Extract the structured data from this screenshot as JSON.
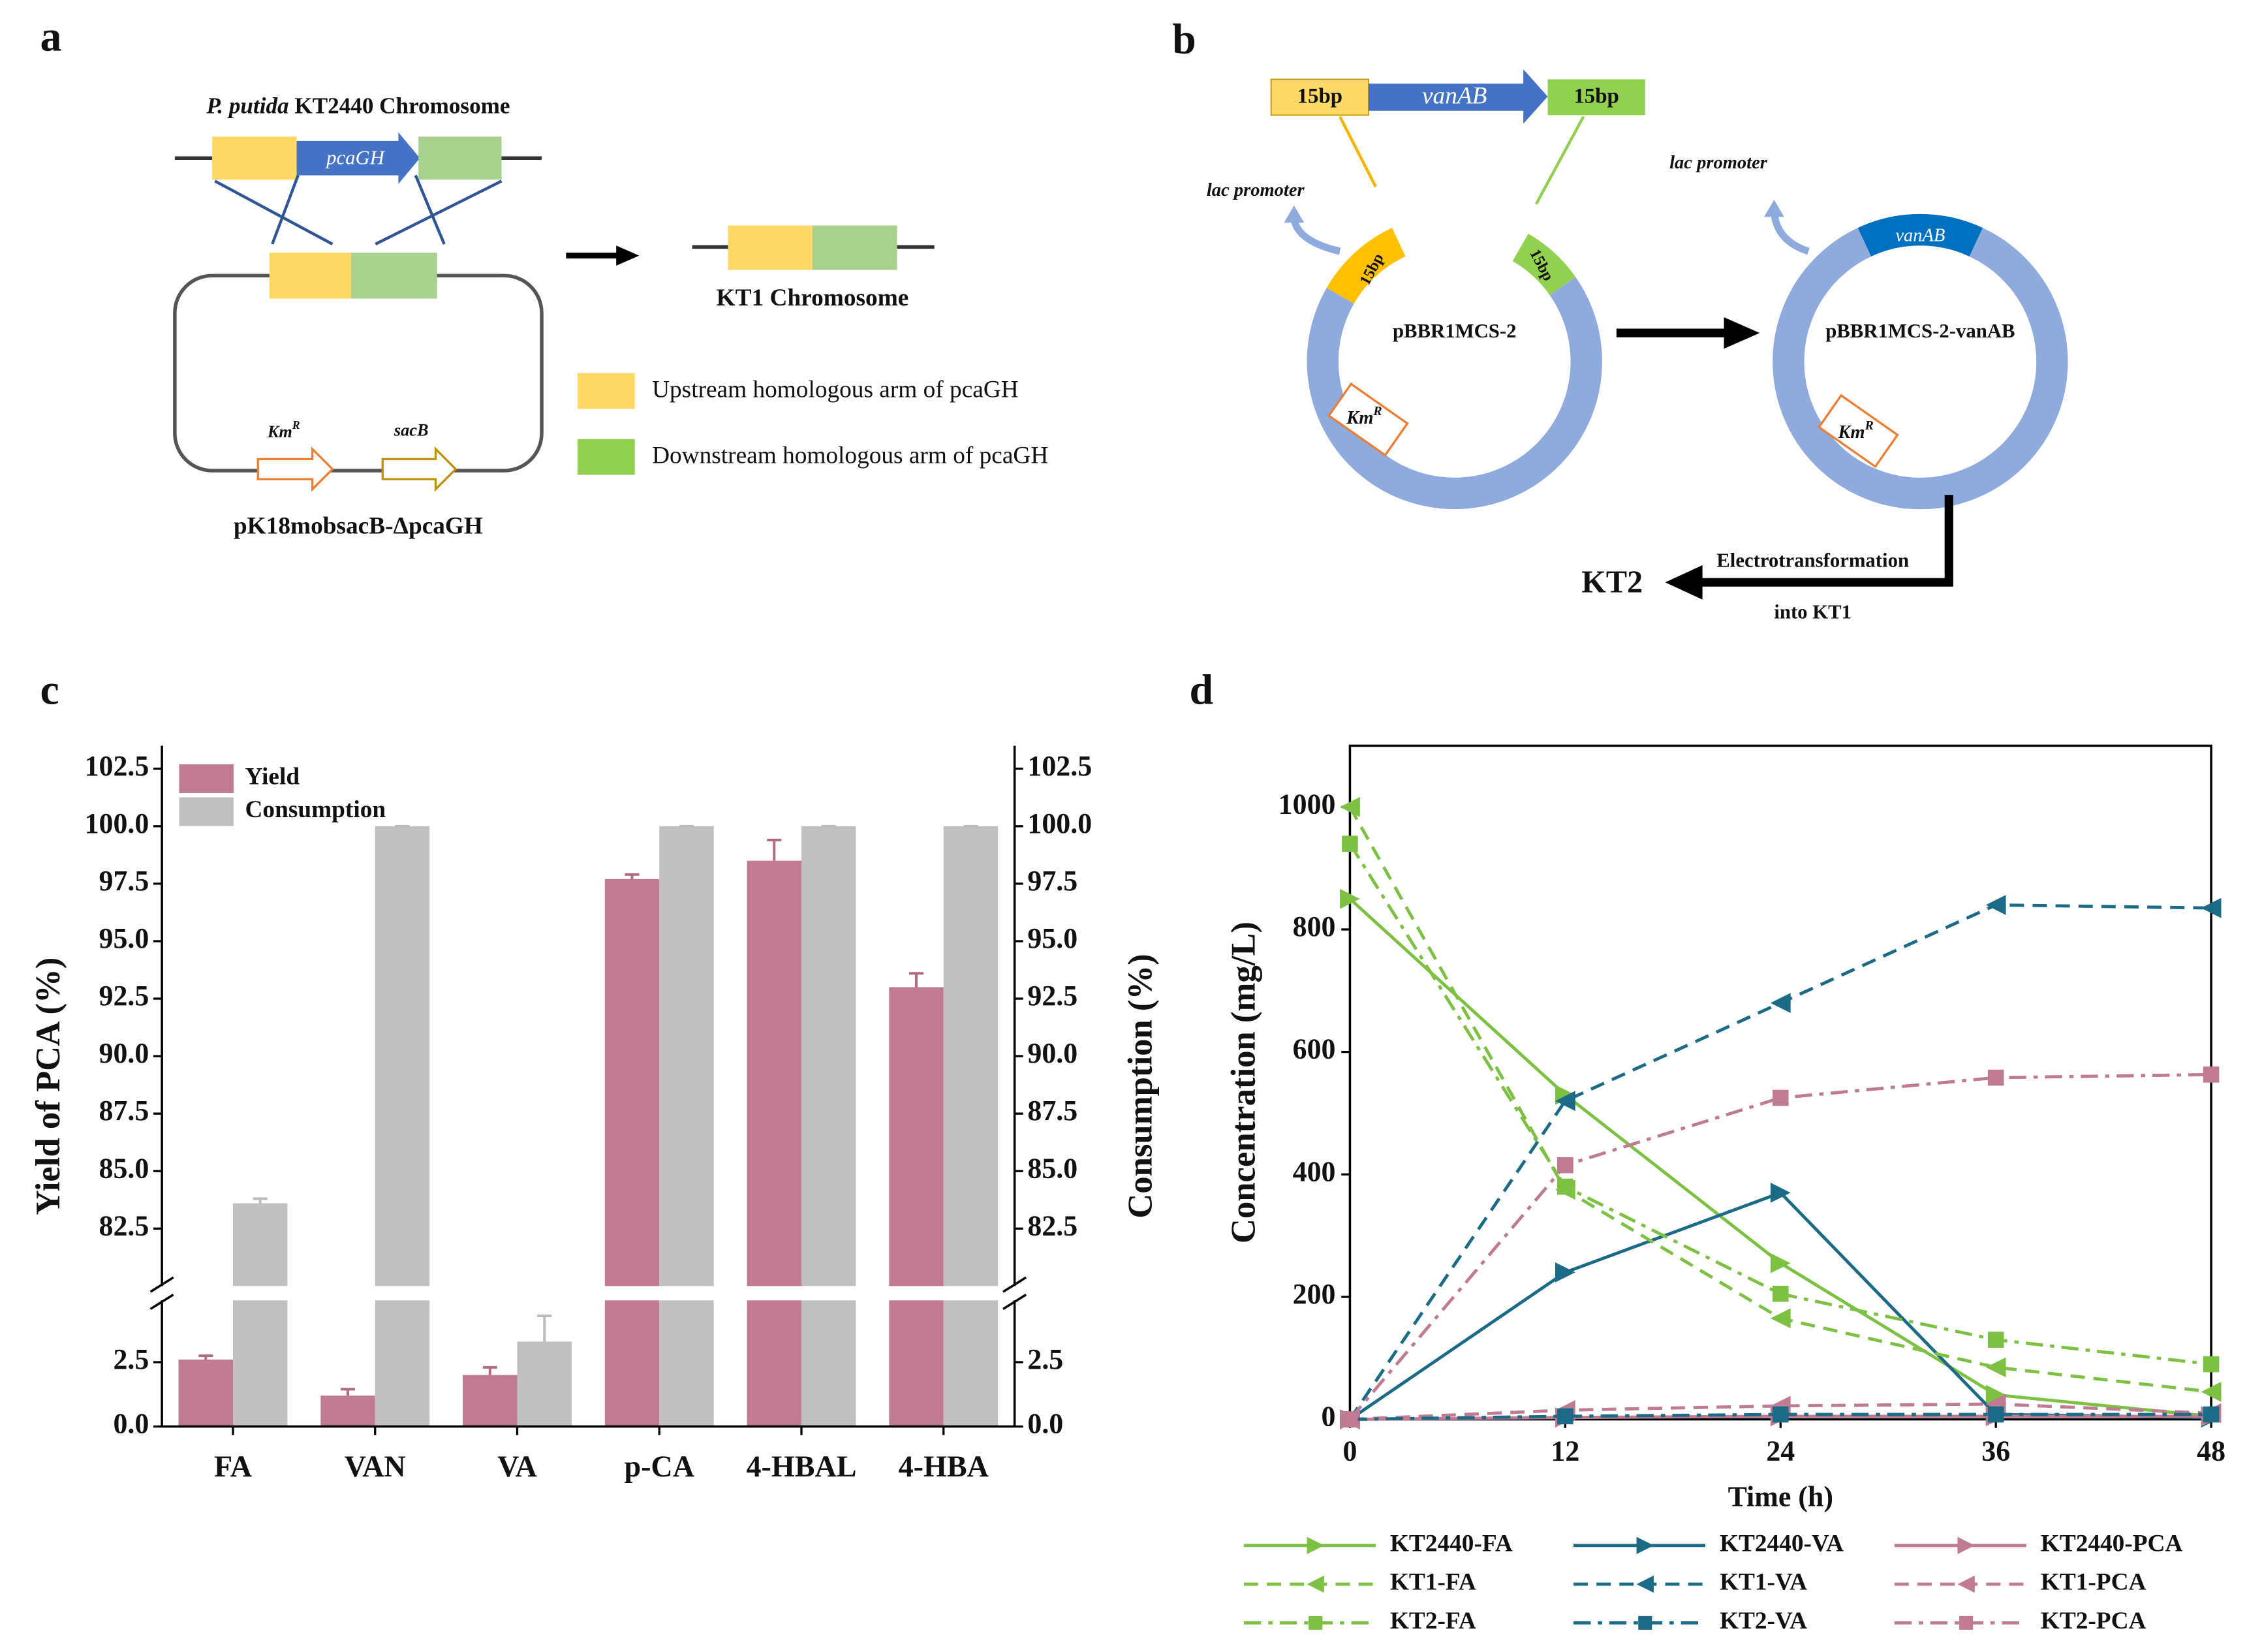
{
  "panel_labels": [
    "a",
    "b",
    "c",
    "d"
  ],
  "diagram_a": {
    "organism": "P. putida",
    "chromosome": "KT2440 Chromosome",
    "gene": "pcaGH",
    "result": "KT1 Chromosome",
    "km": {
      "base": "Km",
      "sup": "R"
    },
    "sacb": "sacB",
    "plasmid": "pK18mobsacB-ΔpcaGH",
    "legend": [
      "Upstream homologous arm of pcaGH",
      "Downstream homologous arm of pcaGH"
    ]
  },
  "diagram_b": {
    "insert": [
      "15bp",
      "vanAB",
      "15bp"
    ],
    "promoter": "lac promoter",
    "arm_left": "15bp",
    "arm_right": "15bp",
    "vector": "pBBR1MCS-2",
    "km": {
      "base": "Km",
      "sup": "R"
    },
    "promoter2": "lac promoter",
    "insert2": "vanAB",
    "product": "pBBR1MCS-2-vanAB",
    "km2": {
      "base": "Km",
      "sup": "R"
    },
    "method": [
      "Electrotransformation",
      "into KT1"
    ],
    "strain": "KT2"
  },
  "chart_data": [
    {
      "type": "bar",
      "categories": [
        "FA",
        "VAN",
        "VA",
        "p-CA",
        "4-HBAL",
        "4-HBA"
      ],
      "series": [
        {
          "name": "Yield",
          "color": "#c07a91",
          "values": [
            2.6,
            1.2,
            2.0,
            97.7,
            98.5,
            93.0
          ],
          "errors": [
            0.15,
            0.25,
            0.3,
            0.2,
            0.9,
            0.6
          ]
        },
        {
          "name": "Consumption",
          "color": "#c0c0c0",
          "axis": "y2",
          "values": [
            83.6,
            100,
            3.3,
            100,
            100,
            100
          ],
          "errors": [
            0.2,
            0,
            1.0,
            0,
            0,
            0
          ]
        }
      ],
      "ylabel": "Yield of PCA (%)",
      "y2label": "Consumption (%)",
      "ylim": [
        0,
        103.5
      ],
      "y2lim": [
        0,
        103.5
      ],
      "ybreak": [
        4.9,
        80
      ],
      "yticks": [
        {
          "value": 0,
          "label": "0.0"
        },
        2.5,
        82.5,
        {
          "value": 85,
          "label": "85.0"
        },
        87.5,
        {
          "value": 90,
          "label": "90.0"
        },
        92.5,
        {
          "value": 95,
          "label": "95.0"
        },
        97.5,
        {
          "value": 100,
          "label": "100.0"
        },
        102.5
      ],
      "y2ticks": [
        {
          "value": 0,
          "label": "0.0"
        },
        2.5,
        82.5,
        {
          "value": 85,
          "label": "85.0"
        },
        87.5,
        {
          "value": 90,
          "label": "90.0"
        },
        92.5,
        {
          "value": 95,
          "label": "95.0"
        },
        97.5,
        {
          "value": 100,
          "label": "100.0"
        },
        102.5
      ],
      "legend": "upper left"
    },
    {
      "type": "line",
      "x": [
        0,
        12,
        24,
        36,
        48
      ],
      "xlim": [
        0,
        48
      ],
      "xticks": [
        0,
        12,
        24,
        36,
        48
      ],
      "ylim": [
        0,
        1100
      ],
      "yticks": [
        0,
        200,
        400,
        600,
        800,
        1000
      ],
      "xlabel": "Time (h)",
      "ylabel": "Concentration (mg/L)",
      "legend": "below",
      "series": [
        {
          "name": "KT2440-FA",
          "color": "#7dc142",
          "dash": "solid",
          "marker": "triangle-right",
          "values": [
            850,
            530,
            255,
            40,
            5
          ]
        },
        {
          "name": "KT2440-VA",
          "color": "#1b6b87",
          "dash": "solid",
          "marker": "triangle-right",
          "values": [
            0,
            240,
            370,
            8,
            3
          ]
        },
        {
          "name": "KT2440-PCA",
          "color": "#c07a91",
          "dash": "solid",
          "marker": "triangle-right",
          "values": [
            0,
            3,
            5,
            5,
            5
          ]
        },
        {
          "name": "KT1-FA",
          "color": "#7dc142",
          "dash": "dashed",
          "marker": "triangle-left",
          "values": [
            1000,
            375,
            165,
            85,
            45
          ]
        },
        {
          "name": "KT1-VA",
          "color": "#1b6b87",
          "dash": "dashed",
          "marker": "triangle-left",
          "values": [
            0,
            520,
            680,
            840,
            835
          ]
        },
        {
          "name": "KT1-PCA",
          "color": "#c07a91",
          "dash": "dashed",
          "marker": "triangle-left",
          "values": [
            0,
            15,
            22,
            25,
            10
          ]
        },
        {
          "name": "KT2-FA",
          "color": "#7dc142",
          "dash": "dashdot",
          "marker": "square",
          "values": [
            940,
            380,
            205,
            130,
            90
          ]
        },
        {
          "name": "KT2-VA",
          "color": "#1b6b87",
          "dash": "dashdot",
          "marker": "square",
          "values": [
            0,
            5,
            8,
            8,
            8
          ]
        },
        {
          "name": "KT2-PCA",
          "color": "#c07a91",
          "dash": "dashdot",
          "marker": "square",
          "values": [
            0,
            415,
            525,
            558,
            563
          ]
        }
      ]
    }
  ]
}
